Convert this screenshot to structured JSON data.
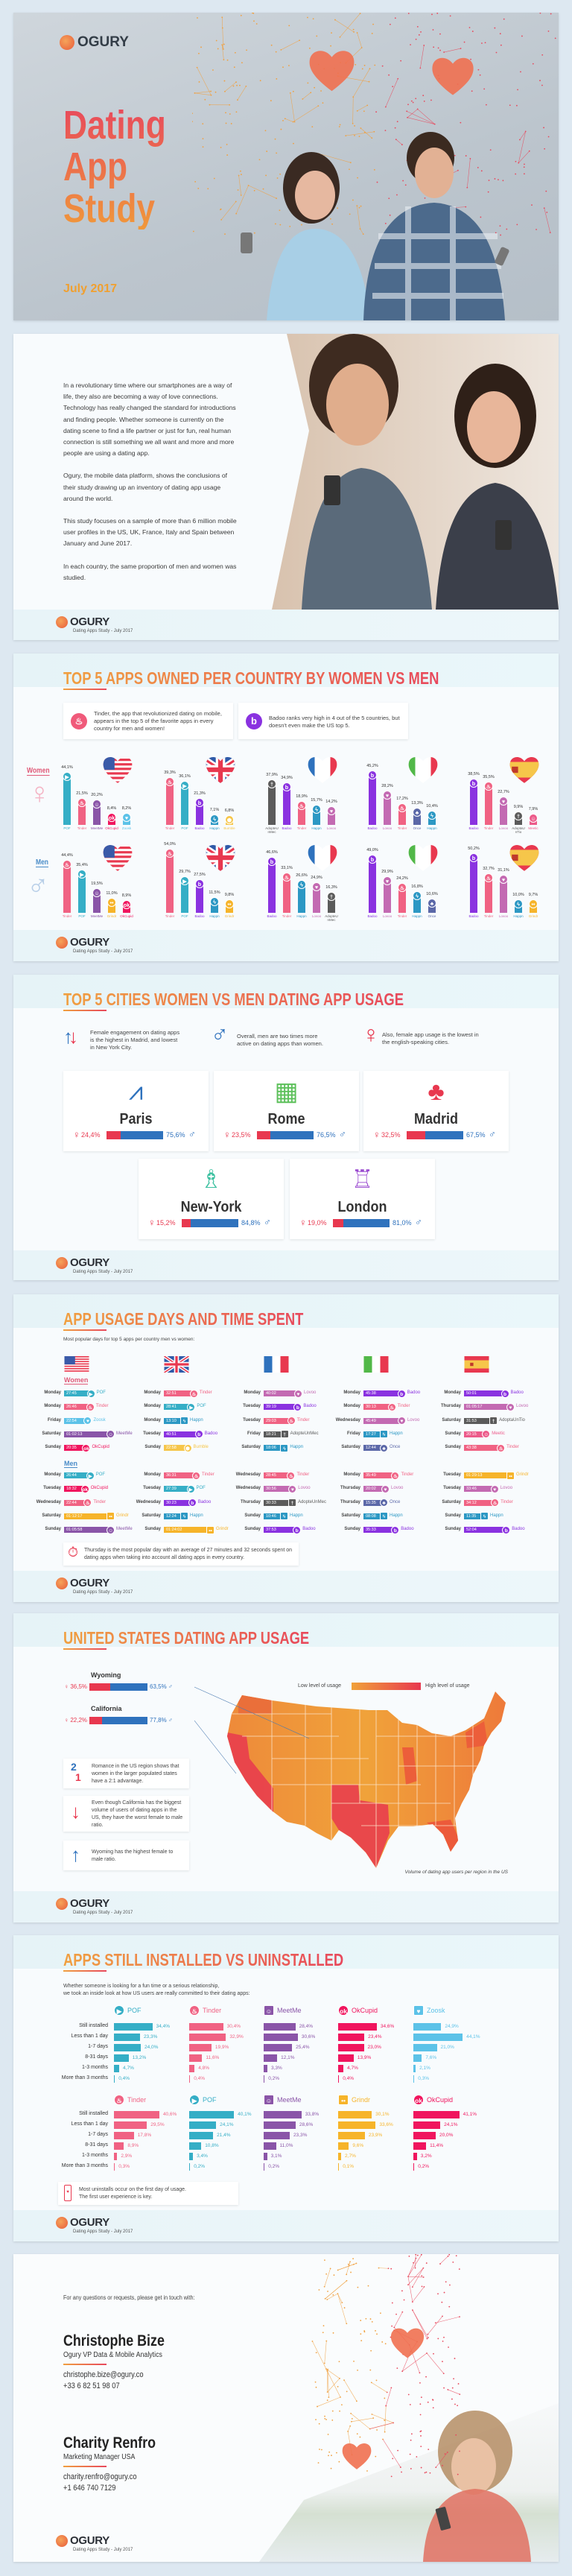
{
  "brand": "OGURY",
  "footer_caption": "Dating Apps Study - July 2017",
  "colors": {
    "accent_orange": "#f0a040",
    "accent_red": "#e8485c",
    "female": "#e8384f",
    "male": "#2f72bd"
  },
  "app_colors": {
    "Tinder": "#f06283",
    "POF": "#35aec6",
    "MeetMe": "#8a55a8",
    "OkCupid": "#f0155e",
    "Zoosk": "#5cc2e8",
    "Badoo": "#8a32e0",
    "Happn": "#2c98c4",
    "Bumble": "#f6c64a",
    "Lovoo": "#c36ab2",
    "AdopteUnMec": "#5b5b5b",
    "Once": "#5b68a8",
    "Meetic": "#ec5a8a",
    "Grindr": "#f6b42a",
    "AdoptaUnTio": "#5b5b5b"
  },
  "app_icons": {
    "Tinder": "flame-icon",
    "POF": "fish-icon",
    "MeetMe": "smiley-icon",
    "OkCupid": "okc-icon",
    "Zoosk": "heart-icon",
    "Badoo": "badoo-b-icon",
    "Happn": "happn-icon",
    "Bumble": "hexagon-icon",
    "Lovoo": "hearts-icon",
    "AdopteUnMec": "adopte-icon",
    "Once": "once-icon",
    "Meetic": "meetic-icon",
    "Grindr": "grindr-mask-icon",
    "AdoptaUnTio": "adopte-icon"
  },
  "cover": {
    "title_lines": [
      "Dating",
      "App",
      "Study"
    ],
    "date": "July 2017"
  },
  "intro": {
    "paragraphs": [
      "In a revolutionary time where our smartphones are a way of life, they also are becoming a way of love connections. Technology has really changed the standard for introductions and finding people. Whether someone is currently on the dating scene to find a life partner or just for fun, real human connection is still something we all want and more and more people are using a dating app.",
      "Ogury, the mobile data platform, shows the conclusions of their study drawing up an inventory of dating app usage around the world.",
      "This study focuses on a sample of more than 6 million mobile user profiles in the US, UK, France, Italy and Spain between January and June 2017.",
      "In each country, the same proportion of men and women was studied."
    ]
  },
  "top5": {
    "title": "TOP 5 APPS OWNED PER COUNTRY BY WOMEN VS MEN",
    "notes": [
      {
        "icon": "tinder-flame-icon",
        "text": "Tinder, the app that revolutionized dating on mobile, appears in the top 5 of the favorite apps in every country for men and women!"
      },
      {
        "icon": "badoo-icon",
        "text": "Badoo ranks very high in 4 out of the 5 countries, but doesn't even make the US top 5."
      }
    ],
    "women_label": "Women",
    "men_label": "Men",
    "countries": [
      {
        "flag": "us",
        "women": [
          [
            "POF",
            44.1
          ],
          [
            "Tinder",
            21.5
          ],
          [
            "MeetMe",
            20.2
          ],
          [
            "OkCupid",
            8.4
          ],
          [
            "Zoosk",
            8.2
          ]
        ],
        "men": [
          [
            "Tinder",
            44.4
          ],
          [
            "POF",
            35.4
          ],
          [
            "MeetMe",
            19.5
          ],
          [
            "Grindr",
            11.0
          ],
          [
            "OkCupid",
            8.9
          ]
        ]
      },
      {
        "flag": "uk",
        "women": [
          [
            "Tinder",
            39.3
          ],
          [
            "POF",
            36.1
          ],
          [
            "Badoo",
            21.3
          ],
          [
            "Happn",
            7.1
          ],
          [
            "Bumble",
            6.8
          ]
        ],
        "men": [
          [
            "Tinder",
            54.0
          ],
          [
            "POF",
            29.7
          ],
          [
            "Badoo",
            27.5
          ],
          [
            "Happn",
            11.5
          ],
          [
            "Grindr",
            9.8
          ]
        ]
      },
      {
        "flag": "fr",
        "women": [
          [
            "AdopteUnMec",
            37.9
          ],
          [
            "Badoo",
            34.9
          ],
          [
            "Tinder",
            18.9
          ],
          [
            "Happn",
            15.7
          ],
          [
            "Lovoo",
            14.2
          ]
        ],
        "men": [
          [
            "Badoo",
            46.6
          ],
          [
            "Tinder",
            33.1
          ],
          [
            "Happn",
            26.6
          ],
          [
            "Lovoo",
            24.9
          ],
          [
            "AdopteUnMec",
            16.3
          ]
        ]
      },
      {
        "flag": "it",
        "women": [
          [
            "Badoo",
            45.2
          ],
          [
            "Lovoo",
            28.2
          ],
          [
            "Tinder",
            17.2
          ],
          [
            "Once",
            13.3
          ],
          [
            "Happn",
            10.4
          ]
        ],
        "men": [
          [
            "Badoo",
            49.0
          ],
          [
            "Lovoo",
            29.9
          ],
          [
            "Tinder",
            24.2
          ],
          [
            "Happn",
            16.8
          ],
          [
            "Once",
            10.6
          ]
        ]
      },
      {
        "flag": "es",
        "women": [
          [
            "Badoo",
            38.5
          ],
          [
            "Tinder",
            35.5
          ],
          [
            "Lovoo",
            22.7
          ],
          [
            "AdoptaUnTio",
            9.9
          ],
          [
            "Meetic",
            7.9
          ]
        ],
        "men": [
          [
            "Badoo",
            50.2
          ],
          [
            "Tinder",
            32.7
          ],
          [
            "Lovoo",
            31.1
          ],
          [
            "Happn",
            10.0
          ],
          [
            "Grindr",
            9.7
          ]
        ]
      }
    ]
  },
  "cities": {
    "title": "TOP 5 CITIES WOMEN VS MEN DATING APP USAGE",
    "notes": [
      {
        "icon": "up-down-arrows-icon",
        "text": "Female engagement on dating apps is the highest in Madrid, and lowest in New York City."
      },
      {
        "icon": "male-symbol-icon",
        "text": "Overall, men are two times more active on dating apps than women."
      },
      {
        "icon": "female-symbol-icon",
        "text": "Also, female app usage is the lowest in the english-speaking cities."
      }
    ],
    "list": [
      {
        "name": "Paris",
        "icon": "eiffel-tower-icon",
        "icon_color": "#2f72bd",
        "female": 24.4,
        "male": 75.6
      },
      {
        "name": "Rome",
        "icon": "colosseum-icon",
        "icon_color": "#5cc05a",
        "female": 23.5,
        "male": 76.5
      },
      {
        "name": "Madrid",
        "icon": "bear-tree-icon",
        "icon_color": "#e8384f",
        "female": 32.5,
        "male": 67.5
      },
      {
        "name": "New-York",
        "icon": "statue-of-liberty-icon",
        "icon_color": "#3cc0a0",
        "female": 15.2,
        "male": 84.8
      },
      {
        "name": "London",
        "icon": "big-ben-icon",
        "icon_color": "#9a4ad0",
        "female": 19.0,
        "male": 81.0
      }
    ]
  },
  "usage": {
    "title": "APP USAGE DAYS AND TIME SPENT",
    "subtitle": "Most popular days for top 5 apps per country men vs women:",
    "women_label": "Women",
    "men_label": "Men",
    "countries": [
      {
        "flag": "us",
        "women": [
          [
            "Monday",
            "27:45",
            "POF"
          ],
          [
            "Monday",
            "26:46",
            "Tinder"
          ],
          [
            "Friday",
            "22:54",
            "Zoosk"
          ],
          [
            "Saturday",
            "01:02:13",
            "MeetMe"
          ],
          [
            "Sunday",
            "20:35",
            "OkCupid"
          ]
        ],
        "men": [
          [
            "Monday",
            "26:44",
            "POF"
          ],
          [
            "Tuesday",
            "18:32",
            "OkCupid"
          ],
          [
            "Wednesday",
            "22:44",
            "Tinder"
          ],
          [
            "Saturday",
            "01:12:17",
            "Grindr"
          ],
          [
            "Sunday",
            "01:05:58",
            "MeetMe"
          ]
        ]
      },
      {
        "flag": "uk",
        "women": [
          [
            "Monday",
            "32:51",
            "Tinder"
          ],
          [
            "Monday",
            "28:41",
            "POF"
          ],
          [
            "Monday",
            "13:10",
            "Happn"
          ],
          [
            "Tuesday",
            "40:51",
            "Badoo"
          ],
          [
            "Sunday",
            "22:58",
            "Bumble"
          ]
        ],
        "men": [
          [
            "Monday",
            "36:31",
            "Tinder"
          ],
          [
            "Tuesday",
            "27:39",
            "POF"
          ],
          [
            "Wednesday",
            "30:23",
            "Badoo"
          ],
          [
            "Saturday",
            "12:24",
            "Happn"
          ],
          [
            "Sunday",
            "01:24:02",
            "Grindr"
          ]
        ]
      },
      {
        "flag": "fr",
        "women": [
          [
            "Monday",
            "40:02",
            "Lovoo"
          ],
          [
            "Tuesday",
            "39:19",
            "Badoo"
          ],
          [
            "Tuesday",
            "29:03",
            "Tinder"
          ],
          [
            "Friday",
            "18:21",
            "AdopteUnMec"
          ],
          [
            "Saturday",
            "18:06",
            "Happn"
          ]
        ],
        "men": [
          [
            "Wednesday",
            "28:45",
            "Tinder"
          ],
          [
            "Wednesday",
            "30:56",
            "Lovoo"
          ],
          [
            "Thursday",
            "30:33",
            "AdopteUnMec"
          ],
          [
            "Sunday",
            "10:46",
            "Happn"
          ],
          [
            "Sunday",
            "37:53",
            "Badoo"
          ]
        ]
      },
      {
        "flag": "it",
        "women": [
          [
            "Monday",
            "45:38",
            "Badoo"
          ],
          [
            "Monday",
            "30:13",
            "Tinder"
          ],
          [
            "Wednesday",
            "45:49",
            "Lovoo"
          ],
          [
            "Friday",
            "17:27",
            "Happn"
          ],
          [
            "Saturday",
            "12:44",
            "Once"
          ]
        ],
        "men": [
          [
            "Monday",
            "35:49",
            "Tinder"
          ],
          [
            "Thursday",
            "20:02",
            "Lovoo"
          ],
          [
            "Thursday",
            "15:35",
            "Once"
          ],
          [
            "Saturday",
            "08:08",
            "Happn"
          ],
          [
            "Sunday",
            "35:33",
            "Badoo"
          ]
        ]
      },
      {
        "flag": "es",
        "women": [
          [
            "Monday",
            "50:01",
            "Badoo"
          ],
          [
            "Thursday",
            "01:05:17",
            "Lovoo"
          ],
          [
            "Saturday",
            "31:53",
            "AdoptaUnTio"
          ],
          [
            "Sunday",
            "20:15",
            "Meetic"
          ],
          [
            "Sunday",
            "43:38",
            "Tinder"
          ]
        ],
        "men": [
          [
            "Tuesday",
            "01:29:13",
            "Grindr"
          ],
          [
            "Tuesday",
            "33:46",
            "Lovoo"
          ],
          [
            "Saturday",
            "34:12",
            "Tinder"
          ],
          [
            "Sunday",
            "11:35",
            "Happn"
          ],
          [
            "Sunday",
            "52:04",
            "Badoo"
          ]
        ]
      }
    ],
    "note": "Thursday is the most popular day with an average of 27 minutes and 32 seconds spent on dating apps when taking into account all dating apps in every country."
  },
  "us": {
    "title": "UNITED STATES DATING APP USAGE",
    "states": [
      {
        "name": "Wyoming",
        "female": 36.5,
        "male": 63.5
      },
      {
        "name": "California",
        "female": 22.2,
        "male": 77.8
      }
    ],
    "notes": [
      {
        "icon": "two-to-one-icon",
        "text": "Romance in the US region shows that women in the larger populated states have a 2:1 advantage."
      },
      {
        "icon": "arrow-down-icon",
        "text": "Even though California has the biggest volume of users of dating apps in the US, they have the worst female to male ratio."
      },
      {
        "icon": "arrow-up-icon",
        "text": "Wyoming has the highest female to male ratio."
      }
    ],
    "legend_low": "Low level of usage",
    "legend_high": "High level of usage",
    "legend_colors": [
      "#f0a23a",
      "#e8384f"
    ],
    "map_caption": "Volume of dating app users per region in the US"
  },
  "installed": {
    "title": "APPS STILL INSTALLED VS UNINSTALLED",
    "intro_lines": [
      "Whether someone is looking for a fun time or a serious relationship,",
      "we took an inside look at how US users are really committed to their dating apps:"
    ],
    "row_labels": [
      "Still installed",
      "Less than 1 day",
      "1-7 days",
      "8-31 days",
      "1-3 months",
      "More than 3 months"
    ],
    "groups": [
      [
        {
          "app": "POF",
          "values": [
            34.4,
            23.3,
            24.0,
            13.2,
            4.7,
            0.4
          ]
        },
        {
          "app": "Tinder",
          "values": [
            30.4,
            32.9,
            19.9,
            11.6,
            4.8,
            0.4
          ]
        },
        {
          "app": "MeetMe",
          "values": [
            28.4,
            30.6,
            25.4,
            12.1,
            3.3,
            0.2
          ]
        },
        {
          "app": "OkCupid",
          "values": [
            34.6,
            23.4,
            23.0,
            13.9,
            4.7,
            0.4
          ]
        },
        {
          "app": "Zoosk",
          "values": [
            24.9,
            44.1,
            21.0,
            7.6,
            2.1,
            0.3
          ]
        }
      ],
      [
        {
          "app": "Tinder",
          "values": [
            40.6,
            29.5,
            17.8,
            8.9,
            2.9,
            0.3
          ]
        },
        {
          "app": "POF",
          "values": [
            40.1,
            24.1,
            21.4,
            10.8,
            3.4,
            0.2
          ]
        },
        {
          "app": "MeetMe",
          "values": [
            33.8,
            28.6,
            23.3,
            11.0,
            3.1,
            0.2
          ]
        },
        {
          "app": "Grindr",
          "values": [
            30.1,
            33.6,
            23.9,
            9.6,
            2.7,
            0.1
          ]
        },
        {
          "app": "OkCupid",
          "values": [
            41.1,
            24.1,
            20.0,
            11.4,
            3.2,
            0.2
          ]
        }
      ]
    ],
    "note_lines": [
      "Most uninstalls occur on the first day of usage.",
      "The first user experience is key."
    ]
  },
  "contact": {
    "intro": "For any questions or requests, please get in touch with:",
    "people": [
      {
        "name": "Christophe Bize",
        "role": "Ogury VP Data & Mobile Analytics",
        "email": "christophe.bize@ogury.co",
        "phone": "+33 6 82 51 98 07"
      },
      {
        "name": "Charity Renfro",
        "role": "Marketing Manager USA",
        "email": "charity.renfro@ogury.co",
        "phone": "+1 646 740 7129"
      }
    ]
  }
}
